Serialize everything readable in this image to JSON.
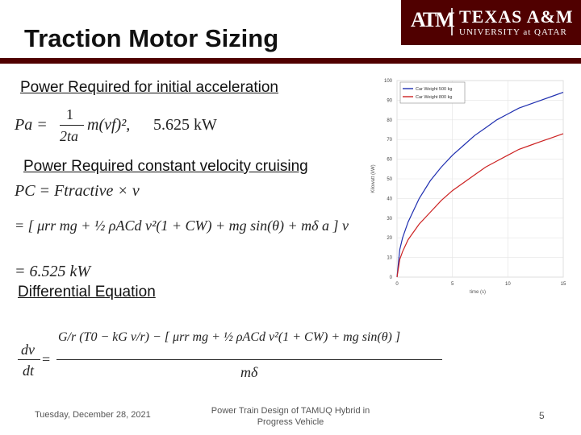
{
  "slide": {
    "title": "Traction Motor Sizing",
    "logo_mark": "ATM",
    "logo_line1": "TEXAS A&M",
    "logo_line2": "UNIVERSITY at QATAR",
    "heading1": "Power Required for initial acceleration",
    "eq1_lhs": "Pa =",
    "eq1_num": "1",
    "eq1_den": "2ta",
    "eq1_rhs": "m(vf)²,",
    "eq1_value": "5.625 kW",
    "heading2": "Power Required constant velocity cruising",
    "eq2_line1": "PC = Ftractive × v",
    "eq2_line2": "= [ μrr mg + ½ ρACd v²(1 + CW) + mg sin(θ) + mδ a ] v",
    "eq2_line3": "= 6.525 kW",
    "heading3": "Differential Equation",
    "eq3_lhs_num": "dv",
    "eq3_lhs_den": "dt",
    "eq3_num": "G/r (T0 − kG v/r) − [ μrr mg + ½ ρACd v²(1 + CW) + mg sin(θ) ]",
    "eq3_den": "mδ",
    "footer_date": "Tuesday, December 28, 2021",
    "footer_center_line1": "Power Train Design of TAMUQ Hybrid in",
    "footer_center_line2": "Progress Vehicle",
    "page_number": "5"
  },
  "colors": {
    "maroon": "#500000",
    "series1": "#1f2fb0",
    "series2": "#cc2222"
  },
  "chart_data": {
    "type": "line",
    "title": "",
    "xlabel": "time (s)",
    "ylabel": "Kilowatt (kW)",
    "xlim": [
      0,
      15
    ],
    "ylim": [
      0,
      100
    ],
    "xticks": [
      "0",
      "5",
      "10",
      "15"
    ],
    "yticks": [
      "0",
      "10",
      "20",
      "30",
      "40",
      "50",
      "60",
      "70",
      "80",
      "90",
      "100"
    ],
    "legend_position": "top-left",
    "series": [
      {
        "name": "Car Weight 500 kg",
        "color": "#1f2fb0",
        "x": [
          0,
          0.25,
          0.5,
          1,
          2,
          3,
          4,
          5,
          6,
          7,
          8,
          9,
          10,
          11,
          12,
          13,
          14,
          15
        ],
        "values": [
          0,
          14,
          20,
          28,
          40,
          49,
          56,
          62,
          67,
          72,
          76,
          80,
          83,
          86,
          88,
          90,
          92,
          94
        ]
      },
      {
        "name": "Car Weight 800 kg",
        "color": "#cc2222",
        "x": [
          0,
          0.25,
          0.5,
          1,
          2,
          3,
          4,
          5,
          6,
          7,
          8,
          9,
          10,
          11,
          12,
          13,
          14,
          15
        ],
        "values": [
          0,
          9,
          13,
          19,
          27,
          33,
          39,
          44,
          48,
          52,
          56,
          59,
          62,
          65,
          67,
          69,
          71,
          73
        ]
      }
    ]
  }
}
